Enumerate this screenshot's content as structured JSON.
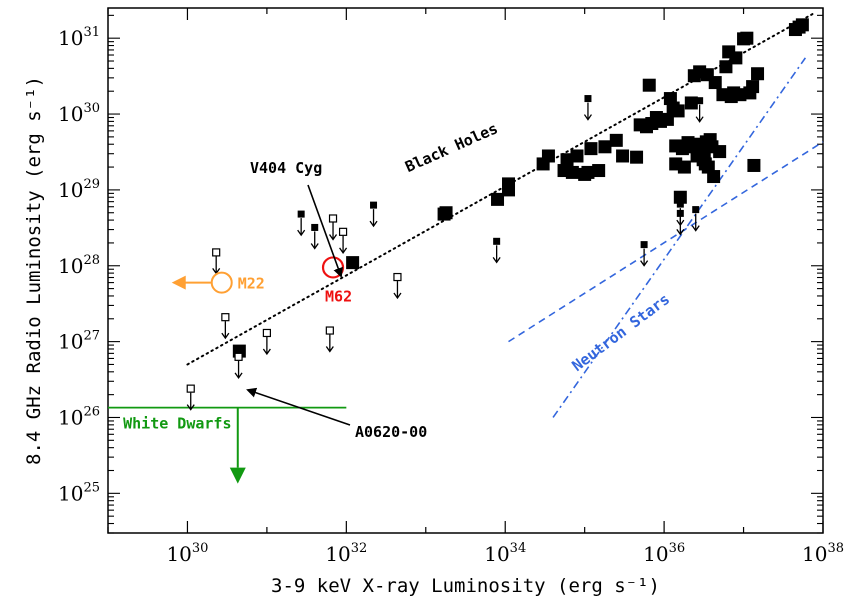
{
  "chart_data": {
    "type": "scatter",
    "xlabel": "3-9 keV X-ray Luminosity (erg s⁻¹)",
    "ylabel": "8.4 GHz Radio Luminosity (erg s⁻¹)",
    "x_scale": "log",
    "y_scale": "log",
    "xlim": [
      1e+29,
      1e+38
    ],
    "ylim": [
      3e+24,
      2.5e+31
    ],
    "x_ticks": [
      {
        "value": 1e+30,
        "base": "10",
        "exp": "30"
      },
      {
        "value": 1e+32,
        "base": "10",
        "exp": "32"
      },
      {
        "value": 1e+34,
        "base": "10",
        "exp": "34"
      },
      {
        "value": 1e+36,
        "base": "10",
        "exp": "36"
      },
      {
        "value": 1e+38,
        "base": "10",
        "exp": "38"
      }
    ],
    "y_ticks": [
      {
        "value": 1e+25,
        "base": "10",
        "exp": "25"
      },
      {
        "value": 1e+26,
        "base": "10",
        "exp": "26"
      },
      {
        "value": 1e+27,
        "base": "10",
        "exp": "27"
      },
      {
        "value": 1e+28,
        "base": "10",
        "exp": "28"
      },
      {
        "value": 1e+29,
        "base": "10",
        "exp": "29"
      },
      {
        "value": 1e+30,
        "base": "10",
        "exp": "30"
      },
      {
        "value": 1e+31,
        "base": "10",
        "exp": "31"
      }
    ],
    "colors": {
      "black_holes": "#000000",
      "m22": "#ffa033",
      "m62": "#ee1111",
      "neutron_stars": "#3366dd",
      "white_dwarfs": "#119911"
    },
    "series": [
      {
        "name": "Black Holes",
        "marker": "filled-square",
        "points": [
          [
            4.5e+30,
            7.5e+26
          ],
          [
            1.2e+32,
            1.1e+28
          ],
          [
            1.8e+33,
            5e+28
          ],
          [
            1.7e+33,
            4.8e+28
          ],
          [
            8e+33,
            7.5e+28
          ],
          [
            1.1e+34,
            1e+29
          ],
          [
            1.1e+34,
            1.2e+29
          ],
          [
            3e+34,
            2.2e+29
          ],
          [
            3.5e+34,
            2.8e+29
          ],
          [
            5.5e+34,
            1.8e+29
          ],
          [
            6e+34,
            2.5e+29
          ],
          [
            7e+34,
            1.7e+29
          ],
          [
            8e+34,
            2.8e+29
          ],
          [
            1e+35,
            1.6e+29
          ],
          [
            1.1e+35,
            1.7e+29
          ],
          [
            1.2e+35,
            3.5e+29
          ],
          [
            1.5e+35,
            1.8e+29
          ],
          [
            1.8e+35,
            3.7e+29
          ],
          [
            2.5e+35,
            4.5e+29
          ],
          [
            3e+35,
            2.8e+29
          ],
          [
            4.5e+35,
            2.7e+29
          ],
          [
            5e+35,
            7.2e+29
          ],
          [
            6e+35,
            6.8e+29
          ],
          [
            6.5e+35,
            2.4e+30
          ],
          [
            7e+35,
            7.5e+29
          ],
          [
            8e+35,
            9e+29
          ],
          [
            9e+35,
            8e+29
          ],
          [
            1.1e+36,
            8.5e+29
          ],
          [
            1.2e+36,
            1.6e+30
          ],
          [
            1.3e+36,
            1.2e+30
          ],
          [
            1.4e+36,
            3.8e+29
          ],
          [
            1.4e+36,
            2.2e+29
          ],
          [
            1.5e+36,
            1.1e+30
          ],
          [
            1.6e+36,
            8e+28
          ],
          [
            1.7e+36,
            3.5e+29
          ],
          [
            1.8e+36,
            2e+29
          ],
          [
            2e+36,
            4.2e+29
          ],
          [
            2.1e+36,
            3.7e+29
          ],
          [
            2.2e+36,
            1.4e+30
          ],
          [
            2.4e+36,
            3.2e+30
          ],
          [
            2.5e+36,
            4e+29
          ],
          [
            2.6e+36,
            2.8e+29
          ],
          [
            2.7e+36,
            3.5e+29
          ],
          [
            2.8e+36,
            3.6e+30
          ],
          [
            3e+36,
            3.8e+29
          ],
          [
            3.1e+36,
            2.5e+29
          ],
          [
            3.2e+36,
            3e+29
          ],
          [
            3.3e+36,
            2.2e+29
          ],
          [
            3.4e+36,
            4.3e+29
          ],
          [
            3.5e+36,
            3.3e+30
          ],
          [
            3.6e+36,
            2e+29
          ],
          [
            3.8e+36,
            4.6e+29
          ],
          [
            4e+36,
            3.7e+29
          ],
          [
            4.2e+36,
            1.5e+29
          ],
          [
            4.4e+36,
            2.6e+30
          ],
          [
            5e+36,
            3.2e+29
          ],
          [
            5.5e+36,
            1.8e+30
          ],
          [
            6e+36,
            4.2e+30
          ],
          [
            6.5e+36,
            6.6e+30
          ],
          [
            7e+36,
            1.7e+30
          ],
          [
            7.5e+36,
            1.9e+30
          ],
          [
            8e+36,
            5.5e+30
          ],
          [
            9e+36,
            1.8e+30
          ],
          [
            1e+37,
            9.8e+30
          ],
          [
            1.1e+37,
            1e+31
          ],
          [
            1.2e+37,
            1.9e+30
          ],
          [
            1.3e+37,
            2.3e+30
          ],
          [
            1.35e+37,
            2.1e+29
          ],
          [
            1.5e+37,
            3.4e+30
          ],
          [
            4.5e+37,
            1.3e+31
          ],
          [
            5e+37,
            1.4e+31
          ],
          [
            5.5e+37,
            1.5e+31
          ]
        ]
      },
      {
        "name": "Black Holes (upper limits)",
        "marker": "filled-square-down-arrow",
        "points": [
          [
            2.7e+31,
            4.8e+28
          ],
          [
            4e+31,
            3.2e+28
          ],
          [
            2.2e+32,
            6.3e+28
          ],
          [
            7.8e+33,
            2.1e+28
          ],
          [
            1.1e+35,
            1.6e+30
          ],
          [
            5.6e+35,
            1.9e+28
          ],
          [
            1.6e+36,
            6.5e+28
          ],
          [
            1.6e+36,
            4.9e+28
          ],
          [
            2.5e+36,
            5.5e+28
          ],
          [
            2.8e+36,
            1.5e+30
          ]
        ]
      },
      {
        "name": "Open squares (upper limits)",
        "marker": "open-square-down-arrow",
        "points": [
          [
            1.1e+30,
            2.4e+26
          ],
          [
            2.3e+30,
            1.5e+28
          ],
          [
            3e+30,
            2.1e+27
          ],
          [
            4.4e+30,
            6.3e+26
          ],
          [
            1e+31,
            1.3e+27
          ],
          [
            6.2e+31,
            1.4e+27
          ],
          [
            6.8e+31,
            4.2e+28
          ],
          [
            9.1e+31,
            2.8e+28
          ],
          [
            4.4e+32,
            7.1e+27
          ]
        ]
      }
    ],
    "annotations": [
      {
        "id": "black-holes",
        "text": "Black Holes"
      },
      {
        "id": "neutron-stars",
        "text": "Neutron Stars"
      },
      {
        "id": "white-dwarfs",
        "text": "White Dwarfs"
      },
      {
        "id": "m22",
        "text": "M22",
        "x": 2.7e+30,
        "y": 6e+27
      },
      {
        "id": "m62",
        "text": "M62",
        "x": 6.8e+31,
        "y": 9.5e+27
      },
      {
        "id": "v404",
        "text": "V404 Cyg"
      },
      {
        "id": "a0620",
        "text": "A0620-00"
      }
    ],
    "lines": {
      "black_hole_relation": [
        [
          1e+30,
          5e+26
        ],
        [
          7.5e+37,
          2.1e+31
        ]
      ],
      "neutron_dashed": [
        [
          1.1e+34,
          1e+27
        ],
        [
          1e+38,
          4.3e+29
        ]
      ],
      "neutron_dashdot": [
        [
          4e+34,
          1e+26
        ],
        [
          6e+37,
          5.5e+30
        ]
      ],
      "white_dwarf_limit": [
        [
          1e+29,
          1.35e+26
        ],
        [
          1e+32,
          1.35e+26
        ]
      ]
    }
  }
}
